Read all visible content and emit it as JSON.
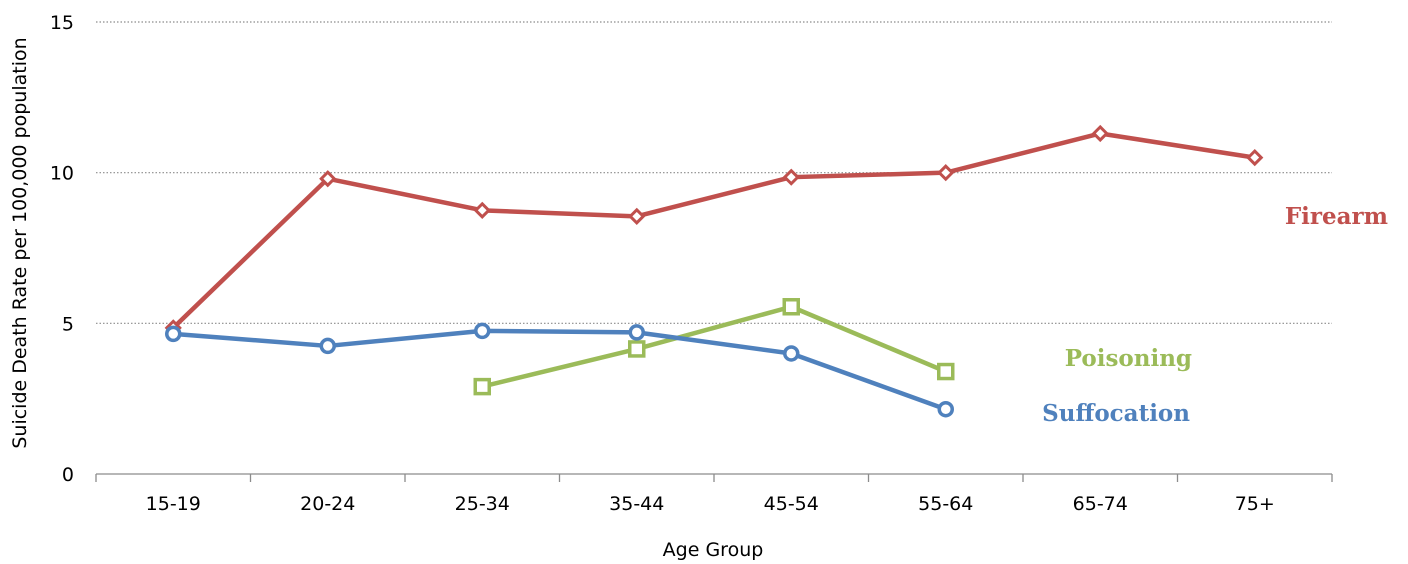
{
  "chart_data": {
    "type": "line",
    "categories": [
      "15-19",
      "20-24",
      "25-34",
      "35-44",
      "45-54",
      "55-64",
      "65-74",
      "75+"
    ],
    "xlabel": "Age Group",
    "ylabel": "Suicide Death Rate per 100,000 population",
    "ylim": [
      0,
      15
    ],
    "yticks": [
      "0",
      "5",
      "10",
      "15"
    ],
    "grid": "horizontal dotted",
    "legend": "inline labels",
    "series": [
      {
        "name": "Firearm",
        "color": "#c0504d",
        "marker": "diamond",
        "values": [
          4.85,
          9.8,
          8.75,
          8.55,
          9.85,
          10.0,
          11.3,
          10.5
        ]
      },
      {
        "name": "Poisoning",
        "color": "#9bbb59",
        "marker": "square",
        "values": [
          null,
          null,
          2.9,
          4.15,
          5.55,
          3.4,
          null,
          null
        ]
      },
      {
        "name": "Suffocation",
        "color": "#4f81bd",
        "marker": "circle",
        "values": [
          4.65,
          4.25,
          4.75,
          4.7,
          4.0,
          2.15,
          null,
          null
        ]
      }
    ]
  }
}
